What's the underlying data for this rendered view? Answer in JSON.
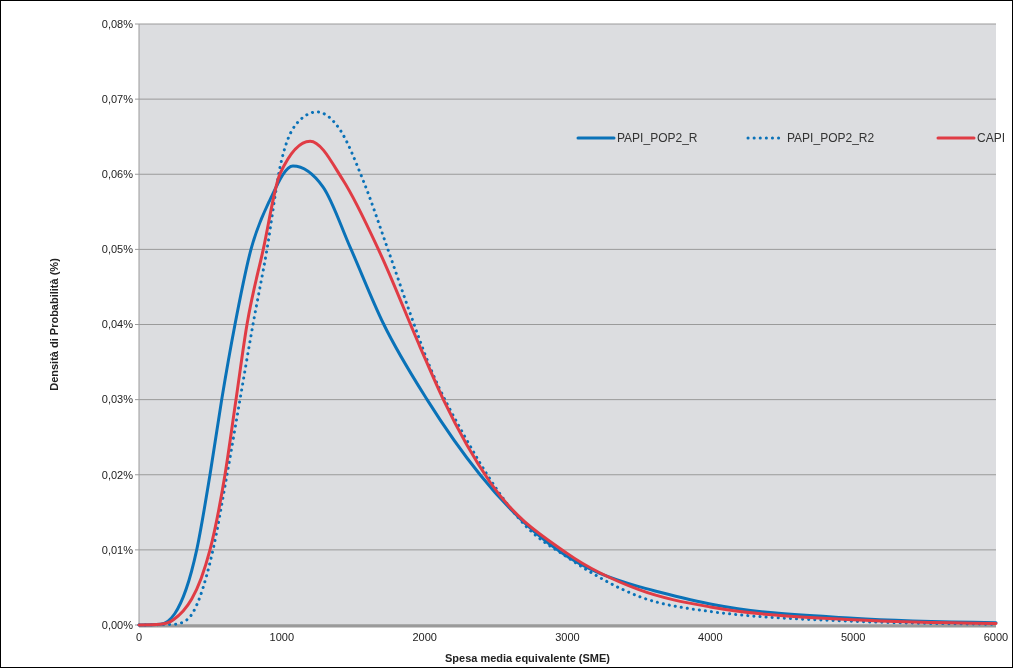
{
  "chart_data": {
    "type": "line",
    "xlabel": "Spesa media equivalente (SME)",
    "ylabel": "Densità di Probabilità (%)",
    "xlim": [
      0,
      6000
    ],
    "xticks": [
      0,
      1000,
      2000,
      3000,
      4000,
      5000,
      6000
    ],
    "ylim": [
      0,
      0.08
    ],
    "yticks": [
      {
        "value": 0,
        "label": "0,00%"
      },
      {
        "value": 0.01,
        "label": "0,01%"
      },
      {
        "value": 0.02,
        "label": "0,02%"
      },
      {
        "value": 0.03,
        "label": "0,03%"
      },
      {
        "value": 0.04,
        "label": "0,04%"
      },
      {
        "value": 0.05,
        "label": "0,05%"
      },
      {
        "value": 0.06,
        "label": "0,06%"
      },
      {
        "value": 0.07,
        "label": "0,07%"
      },
      {
        "value": 0.08,
        "label": "0,08%"
      }
    ],
    "grid": "y",
    "legend": "top right",
    "marker": "none",
    "series": [
      {
        "name": "PAPI_POP2_R",
        "color": "#0a72b8",
        "line_style": "solid",
        "x": [
          0,
          150,
          250,
          404,
          497,
          579,
          672,
          784,
          917,
          1078,
          1289,
          1478,
          1709,
          2017,
          2388,
          2952,
          3500,
          3641,
          4027,
          5000,
          6000
        ],
        "values": [
          0,
          0.0001,
          0.0015,
          0.01,
          0.02,
          0.03,
          0.04,
          0.05,
          0.0566,
          0.0611,
          0.0583,
          0.0503,
          0.0402,
          0.03,
          0.02,
          0.0097,
          0.0051,
          0.0044,
          0.0027,
          0.0009,
          0.0003
        ]
      },
      {
        "name": "PAPI_POP2_R2",
        "color": "#0a72b8",
        "line_style": "dotted",
        "x": [
          0,
          250,
          336,
          518,
          616,
          707,
          798,
          896,
          988,
          1106,
          1246,
          1408,
          1569,
          1737,
          1898,
          2038,
          2269,
          2717,
          3000,
          3515,
          4000,
          5000,
          6000
        ],
        "values": [
          0,
          0.0001,
          0.0007,
          0.01,
          0.02,
          0.03,
          0.04,
          0.05,
          0.061,
          0.0668,
          0.0683,
          0.0659,
          0.0592,
          0.0503,
          0.0415,
          0.0343,
          0.0255,
          0.013,
          0.009,
          0.0037,
          0.0018,
          0.0005,
          0.0001
        ]
      },
      {
        "name": "CAPI",
        "color": "#e03c45",
        "line_style": "solid",
        "x": [
          0,
          150,
          241,
          497,
          602,
          679,
          756,
          870,
          988,
          1198,
          1429,
          1688,
          1968,
          2131,
          2458,
          3000,
          3500,
          4000,
          5000,
          6000
        ],
        "values": [
          0,
          0.0001,
          0.0007,
          0.01,
          0.02,
          0.03,
          0.04,
          0.05,
          0.0601,
          0.0644,
          0.0592,
          0.0495,
          0.037,
          0.03,
          0.019,
          0.0095,
          0.0047,
          0.0024,
          0.0007,
          0.0002
        ]
      }
    ]
  }
}
